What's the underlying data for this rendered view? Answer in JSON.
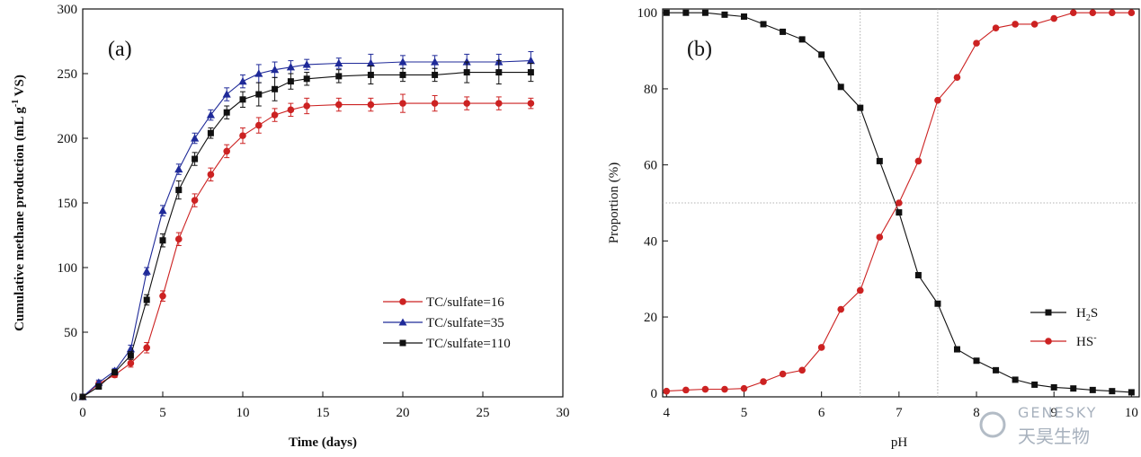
{
  "watermark": {
    "brand": "GENESKY",
    "chinese": "天昊生物"
  },
  "chart_data": [
    {
      "panel_label": "(a)",
      "type": "line",
      "xlabel": "Time (days)",
      "ylabel": "Cumulative methane production (mL g",
      "ylabel_sup": "-1",
      "ylabel_tail": " VS)",
      "xlim": [
        0,
        30
      ],
      "ylim": [
        0,
        300
      ],
      "xticks": [
        "0",
        "5",
        "10",
        "15",
        "20",
        "25",
        "30"
      ],
      "yticks": [
        "0",
        "50",
        "100",
        "150",
        "200",
        "250",
        "300"
      ],
      "legend_position": "bottom-right",
      "grid": false,
      "series": [
        {
          "name": "TC/sulfate=16",
          "color": "#cc2222",
          "marker": "circle",
          "x": [
            0,
            1,
            2,
            3,
            4,
            5,
            6,
            7,
            8,
            9,
            10,
            11,
            12,
            13,
            14,
            16,
            18,
            20,
            22,
            24,
            26,
            28
          ],
          "y": [
            0,
            10,
            17,
            26,
            38,
            78,
            122,
            152,
            172,
            190,
            202,
            210,
            218,
            222,
            225,
            226,
            226,
            227,
            227,
            227,
            227,
            227
          ],
          "err": [
            0,
            2,
            2,
            3,
            4,
            4,
            5,
            5,
            5,
            5,
            6,
            6,
            5,
            5,
            6,
            5,
            5,
            7,
            6,
            5,
            5,
            4
          ]
        },
        {
          "name": "TC/sulfate=35",
          "color": "#1f2a99",
          "marker": "triangle",
          "x": [
            0,
            1,
            2,
            3,
            4,
            5,
            6,
            7,
            8,
            9,
            10,
            11,
            12,
            13,
            14,
            16,
            18,
            20,
            22,
            24,
            26,
            28
          ],
          "y": [
            0,
            11,
            20,
            37,
            97,
            144,
            176,
            200,
            218,
            234,
            244,
            250,
            253,
            255,
            257,
            258,
            258,
            259,
            259,
            259,
            259,
            260
          ],
          "err": [
            0,
            2,
            2,
            3,
            3,
            4,
            4,
            4,
            4,
            5,
            5,
            7,
            6,
            5,
            4,
            4,
            7,
            5,
            5,
            6,
            6,
            7
          ]
        },
        {
          "name": "TC/sulfate=110",
          "color": "#111111",
          "marker": "square",
          "x": [
            0,
            1,
            2,
            3,
            4,
            5,
            6,
            7,
            8,
            9,
            10,
            11,
            12,
            13,
            14,
            16,
            18,
            20,
            22,
            24,
            26,
            28
          ],
          "y": [
            0,
            8,
            19,
            32,
            75,
            121,
            160,
            184,
            204,
            220,
            230,
            234,
            238,
            244,
            246,
            248,
            249,
            249,
            249,
            251,
            251,
            251
          ],
          "err": [
            0,
            2,
            2,
            3,
            4,
            5,
            7,
            5,
            4,
            5,
            6,
            9,
            9,
            6,
            5,
            5,
            7,
            5,
            5,
            8,
            9,
            7
          ]
        }
      ]
    },
    {
      "panel_label": "(b)",
      "type": "line",
      "xlabel": "pH",
      "ylabel": "Proportion (%)",
      "xlim": [
        3.95,
        10.1
      ],
      "ylim": [
        -1,
        101
      ],
      "xticks": [
        "4",
        "5",
        "6",
        "7",
        "8",
        "9",
        "10"
      ],
      "yticks": [
        "0",
        "20",
        "40",
        "60",
        "80",
        "100"
      ],
      "legend_position": "bottom-right",
      "grid": false,
      "reference_lines": {
        "x": [
          6.5,
          7.5
        ],
        "y": [
          50
        ]
      },
      "series": [
        {
          "name": "H",
          "name_sub": "2",
          "name_tail": "S",
          "color": "#111111",
          "marker": "square",
          "x": [
            4,
            4.25,
            4.5,
            4.75,
            5,
            5.25,
            5.5,
            5.75,
            6,
            6.25,
            6.5,
            6.75,
            7,
            7.25,
            7.5,
            7.75,
            8,
            8.25,
            8.5,
            8.75,
            9,
            9.25,
            9.5,
            9.75,
            10
          ],
          "y": [
            100,
            100,
            100,
            99.5,
            99,
            97,
            95,
            93,
            89,
            80.5,
            75,
            61,
            47.5,
            31,
            23.5,
            11.5,
            8.5,
            6,
            3.5,
            2.2,
            1.5,
            1.2,
            0.8,
            0.5,
            0.2
          ]
        },
        {
          "name": "HS",
          "name_sup": "-",
          "color": "#cc2222",
          "marker": "circle",
          "x": [
            4,
            4.25,
            4.5,
            4.75,
            5,
            5.25,
            5.5,
            5.75,
            6,
            6.25,
            6.5,
            6.75,
            7,
            7.25,
            7.5,
            7.75,
            8,
            8.25,
            8.5,
            8.75,
            9,
            9.25,
            9.5,
            9.75,
            10
          ],
          "y": [
            0.5,
            0.8,
            1,
            1,
            1.2,
            3,
            5,
            6,
            12,
            22,
            27,
            41,
            50,
            61,
            77,
            83,
            92,
            96,
            97,
            97,
            98.5,
            100,
            100,
            100,
            100
          ]
        }
      ]
    }
  ]
}
